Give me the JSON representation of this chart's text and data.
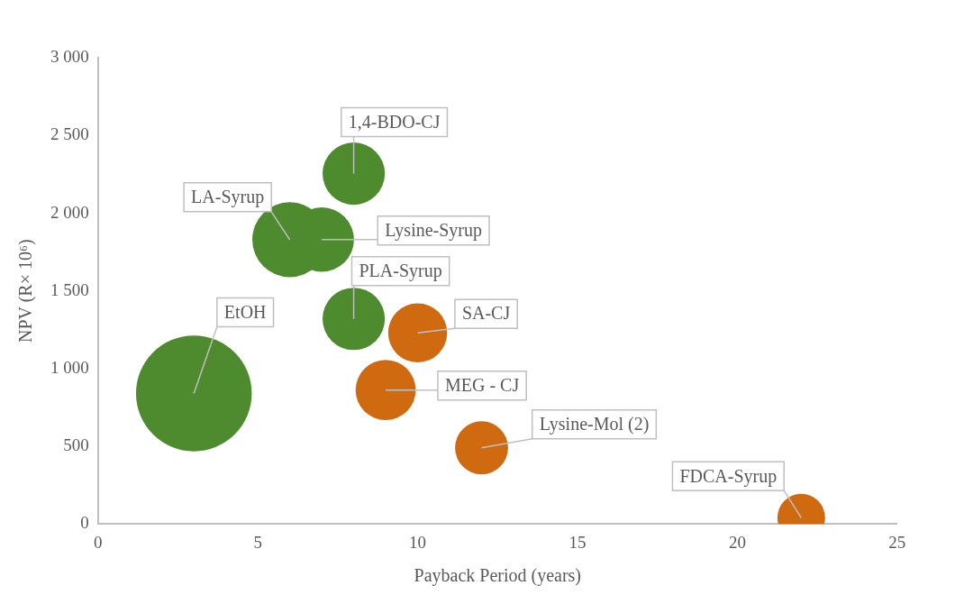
{
  "chart_data": {
    "type": "bubble",
    "xlabel": "Payback Period (years)",
    "ylabel": "NPV (R× 10⁶)",
    "xlim": [
      0,
      25
    ],
    "xticks": [
      0,
      5,
      10,
      15,
      20,
      25
    ],
    "ylim": [
      0,
      3000
    ],
    "yticks": [
      0,
      500,
      {
        "value": 1000,
        "label": "1 000"
      },
      {
        "value": 1500,
        "label": "1 500"
      },
      {
        "value": 2000,
        "label": "2 000"
      },
      {
        "value": 2500,
        "label": "2 500"
      },
      {
        "value": 3000,
        "label": "3 000"
      }
    ],
    "grid": false,
    "legend": false,
    "series": [
      {
        "color": "#4e8a2e",
        "x": [
          3,
          6,
          7,
          8,
          8
        ],
        "values": [
          840,
          1830,
          1830,
          2255,
          1320
        ],
        "sizes": [
          1,
          0.42,
          0.31,
          0.29,
          0.29
        ]
      },
      {
        "color": "#d06a10",
        "x": [
          10,
          9,
          12,
          22
        ],
        "values": [
          1230,
          862,
          490,
          40
        ],
        "sizes": [
          0.26,
          0.27,
          0.21,
          0.17
        ]
      }
    ],
    "annotations": [
      {
        "text": "EtOH",
        "x": 3,
        "y": 840
      },
      {
        "text": "LA-Syrup",
        "x": 6,
        "y": 1830
      },
      {
        "text": "Lysine-Syrup",
        "x": 7,
        "y": 1830
      },
      {
        "text": "1,4-BDO-CJ",
        "x": 8,
        "y": 2255
      },
      {
        "text": "PLA-Syrup",
        "x": 8,
        "y": 1320
      },
      {
        "text": "SA-CJ",
        "x": 10,
        "y": 1230
      },
      {
        "text": "MEG - CJ",
        "x": 9,
        "y": 862
      },
      {
        "text": "Lysine-Mol (2)",
        "x": 12,
        "y": 490
      },
      {
        "text": "FDCA-Syrup",
        "x": 22,
        "y": 40
      }
    ]
  }
}
